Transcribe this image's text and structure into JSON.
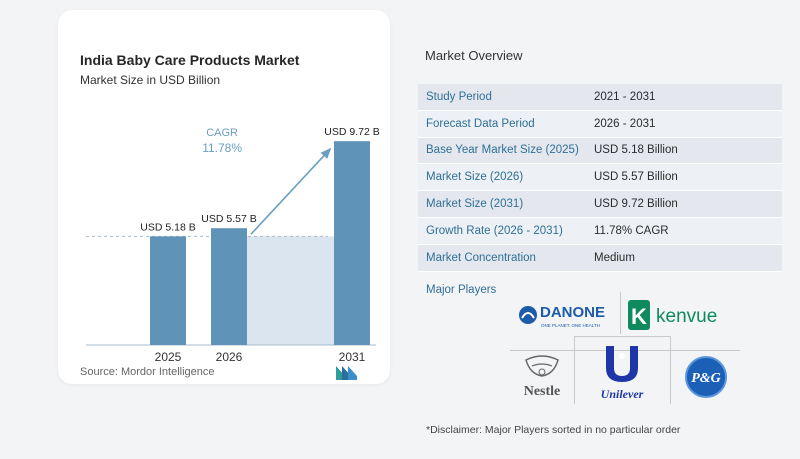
{
  "chart_data": {
    "type": "bar",
    "title": "India Baby Care Products Market",
    "subtitle": "Market Size in USD Billion",
    "categories": [
      "2025",
      "2026",
      "2031"
    ],
    "values": [
      5.18,
      5.57,
      9.72
    ],
    "data_labels": [
      "USD 5.18 B",
      "USD 5.57 B",
      "USD 9.72 B"
    ],
    "annotation": {
      "label": "CAGR",
      "value": "11.78%"
    },
    "ylim": [
      0,
      10.3
    ],
    "grid": false,
    "colors": {
      "bar": "#5f93b7",
      "highlight": "#dbe5ef",
      "arrow": "#6a9fc2",
      "baseline": "#a9b9c9"
    }
  },
  "source": "Source:  Mordor Intelligence",
  "overview": {
    "title": "Market Overview",
    "rows": [
      {
        "label": "Study Period",
        "value": "2021 - 2031"
      },
      {
        "label": "Forecast Data Period",
        "value": "2026 - 2031"
      },
      {
        "label": "Base Year Market Size (2025)",
        "value": "USD 5.18 Billion"
      },
      {
        "label": "Market Size (2026)",
        "value": "USD 5.57 Billion"
      },
      {
        "label": "Market Size (2031)",
        "value": "USD 9.72 Billion"
      },
      {
        "label": "Growth Rate (2026 - 2031)",
        "value": "11.78% CAGR"
      },
      {
        "label": "Market Concentration",
        "value": "Medium"
      }
    ],
    "major_players_label": "Major Players"
  },
  "players": {
    "danone": {
      "name": "DANONE",
      "tagline": "ONE PLANET. ONE HEALTH"
    },
    "kenvue": {
      "name": "kenvue",
      "mark": "K"
    },
    "nestle": {
      "name": "Nestle"
    },
    "unilever": {
      "name": "Unilever"
    },
    "pg": {
      "name": "P&G"
    }
  },
  "disclaimer": "*Disclaimer: Major Players sorted in no particular order"
}
